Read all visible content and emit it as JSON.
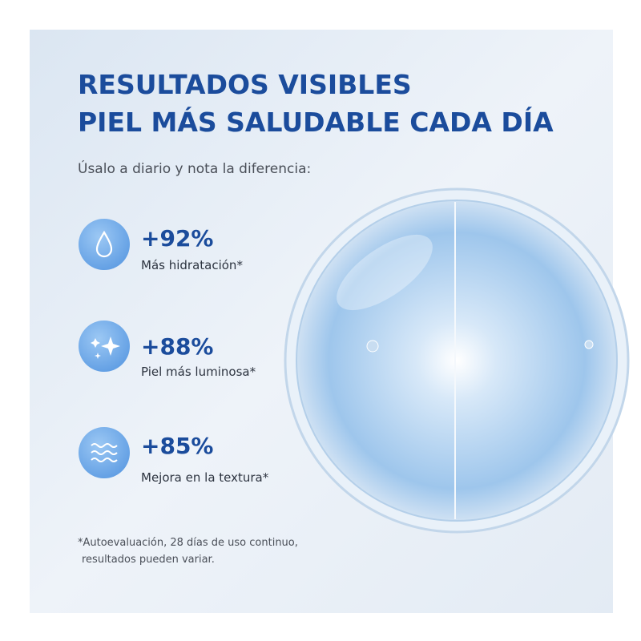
{
  "header": {
    "title_lines": [
      "RESULTADOS VISIBLES",
      "PIEL MÁS SALUDABLE CADA DÍA"
    ],
    "subtitle": "Úsalo a diario y nota la diferencia:"
  },
  "stats": [
    {
      "value": "+92%",
      "label": "Más hidratación*"
    },
    {
      "value": "+88%",
      "label": "Piel más luminosa*"
    },
    {
      "value": "+85%",
      "label": "Mejora en la textura*"
    }
  ],
  "footnote": [
    "*Autoevaluación, 28 días de uso continuo,",
    "resultados pueden variar."
  ]
}
